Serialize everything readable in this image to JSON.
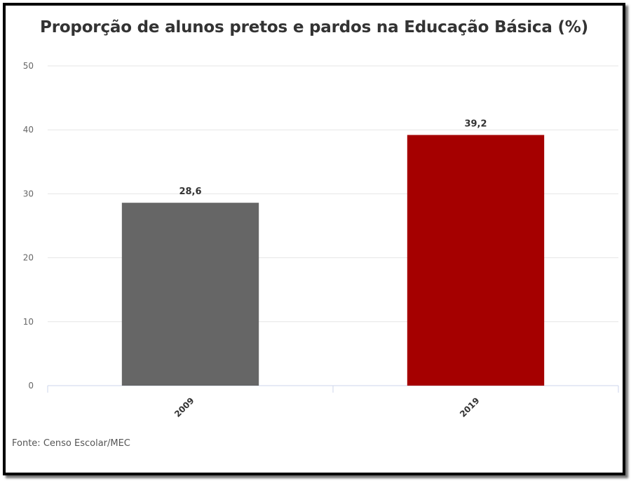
{
  "chart_data": {
    "type": "bar",
    "title": "Proporção de alunos pretos e pardos na Educação Básica (%)",
    "categories": [
      "2009",
      "2019"
    ],
    "values": [
      28.6,
      39.2
    ],
    "value_labels": [
      "28,6",
      "39,2"
    ],
    "colors": [
      "#666666",
      "#a50000"
    ],
    "ylim": [
      0,
      50
    ],
    "yticks": [
      0,
      10,
      20,
      30,
      40,
      50
    ],
    "grid": true,
    "legend": "none",
    "xlabel": "",
    "ylabel": ""
  },
  "source": "Fonte: Censo Escolar/MEC"
}
